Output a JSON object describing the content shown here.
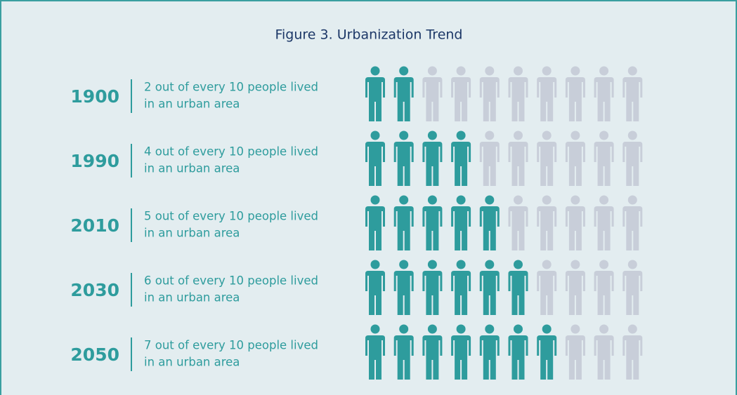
{
  "chart_data": {
    "type": "pictogram",
    "title": "Figure 3. Urbanization Trend",
    "categories": [
      "1900",
      "1990",
      "2010",
      "2030",
      "2050"
    ],
    "values": [
      2,
      4,
      5,
      6,
      7
    ],
    "total": 10,
    "value_labels": [
      [
        "2 out of every 10 people lived",
        "in an urban area"
      ],
      [
        "4 out of every 10 people lived",
        "in an urban area"
      ],
      [
        "5 out of every 10 people lived",
        "in an urban area"
      ],
      [
        "6 out of every 10 people lived",
        "in an urban area"
      ],
      [
        "7 out of every 10 people lived",
        "in an urban area"
      ]
    ],
    "color": "#2e9c9d",
    "empty_color": "#c8ced9"
  }
}
